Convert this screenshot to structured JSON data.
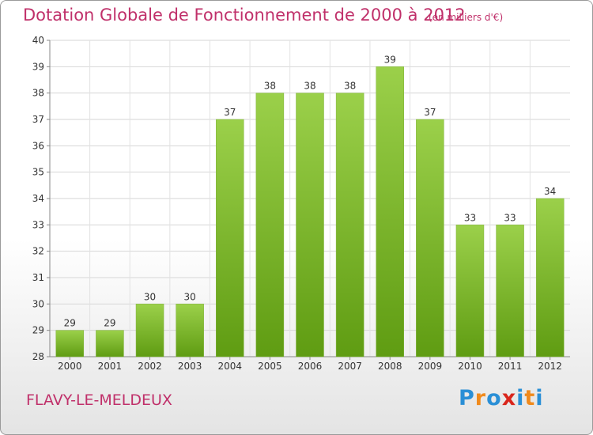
{
  "header": {
    "title": "Dotation Globale de Fonctionnement de 2000 à 2012",
    "unit": "(en milliers d'€)"
  },
  "footer": {
    "commune": "FLAVY-LE-MELDEUX",
    "logo_letters": [
      "P",
      "r",
      "o",
      "x",
      "i",
      "t",
      "i"
    ],
    "logo_colors": [
      "#2a8fd6",
      "#f08a1c",
      "#2a8fd6",
      "#d9261c",
      "#2a8fd6",
      "#f08a1c",
      "#2a8fd6"
    ]
  },
  "chart_data": {
    "type": "bar",
    "title": "Dotation Globale de Fonctionnement de 2000 à 2012",
    "categories": [
      "2000",
      "2001",
      "2002",
      "2003",
      "2004",
      "2005",
      "2006",
      "2007",
      "2008",
      "2009",
      "2010",
      "2011",
      "2012"
    ],
    "values": [
      29,
      29,
      30,
      30,
      37,
      38,
      38,
      38,
      39,
      37,
      33,
      33,
      34
    ],
    "ylim": [
      28,
      40
    ],
    "yticks": [
      28,
      29,
      30,
      31,
      32,
      33,
      34,
      35,
      36,
      37,
      38,
      39,
      40
    ],
    "grid": true,
    "bar_color_top": "#9bd04a",
    "bar_color_bottom": "#5f9c12"
  }
}
